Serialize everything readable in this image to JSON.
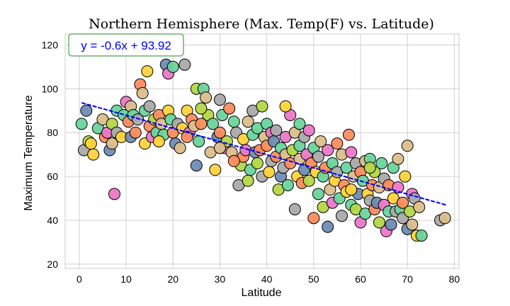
{
  "chart_data": {
    "type": "scatter",
    "title": "Northern Hemisphere (Max. Temp(F) vs. Latitude)",
    "xlabel": "Latitude",
    "ylabel": "Maximum Temperature",
    "xlim": [
      -3,
      81
    ],
    "ylim": [
      18,
      125
    ],
    "xticks": [
      0,
      10,
      20,
      30,
      40,
      50,
      60,
      70,
      80
    ],
    "yticks": [
      20,
      40,
      60,
      80,
      100,
      120
    ],
    "grid": true,
    "annotation": "y = -0.6x + 93.92",
    "regression": {
      "slope": -0.6,
      "intercept": 93.92,
      "x_range": [
        0.5,
        78.5
      ],
      "color": "#0000ff"
    },
    "palette": [
      "#fa8c5e",
      "#6ad49b",
      "#eb78c8",
      "#dcbe8c",
      "#aaaaaa",
      "#b4d746",
      "#ffd23c",
      "#6e8cb4"
    ],
    "point_colors_note": "index into palette",
    "points": [
      [
        0.5,
        84,
        1
      ],
      [
        1,
        72,
        4
      ],
      [
        1.5,
        90,
        7
      ],
      [
        2,
        76,
        5
      ],
      [
        2.5,
        75,
        6
      ],
      [
        3,
        70,
        6
      ],
      [
        4,
        82,
        1
      ],
      [
        5,
        86,
        3
      ],
      [
        5.5,
        78,
        0
      ],
      [
        6,
        80,
        2
      ],
      [
        6.5,
        72,
        7
      ],
      [
        7,
        84,
        5
      ],
      [
        7,
        75,
        3
      ],
      [
        7.5,
        52,
        2
      ],
      [
        8,
        90,
        1
      ],
      [
        8,
        80,
        4
      ],
      [
        9,
        78,
        6
      ],
      [
        9.5,
        88,
        1
      ],
      [
        10,
        94,
        2
      ],
      [
        10.5,
        85,
        0
      ],
      [
        11,
        92,
        3
      ],
      [
        11,
        78,
        7
      ],
      [
        11.5,
        88,
        1
      ],
      [
        12,
        80,
        0
      ],
      [
        12.5,
        86,
        4
      ],
      [
        13,
        102,
        0
      ],
      [
        13.5,
        98,
        3
      ],
      [
        14,
        90,
        1
      ],
      [
        14,
        75,
        6
      ],
      [
        14.5,
        108,
        6
      ],
      [
        15,
        92,
        4
      ],
      [
        15,
        83,
        0
      ],
      [
        15.5,
        78,
        2
      ],
      [
        16,
        86,
        5
      ],
      [
        16.5,
        80,
        1
      ],
      [
        17,
        88,
        0
      ],
      [
        17.5,
        84,
        3
      ],
      [
        18,
        79,
        1
      ],
      [
        18.5,
        111,
        7
      ],
      [
        19,
        107,
        2
      ],
      [
        19,
        90,
        6
      ],
      [
        19.5,
        86,
        1
      ],
      [
        20,
        110,
        1
      ],
      [
        20,
        80,
        0
      ],
      [
        20.5,
        75,
        7
      ],
      [
        21,
        84,
        4
      ],
      [
        21.5,
        73,
        3
      ],
      [
        22,
        82,
        6
      ],
      [
        22.5,
        111,
        4
      ],
      [
        23,
        90,
        6
      ],
      [
        23.5,
        80,
        2
      ],
      [
        24,
        86,
        0
      ],
      [
        24.5,
        83,
        3
      ],
      [
        25,
        100,
        5
      ],
      [
        25,
        65,
        7
      ],
      [
        25.5,
        76,
        1
      ],
      [
        26,
        84,
        0
      ],
      [
        26.5,
        100,
        1
      ],
      [
        27,
        96,
        3
      ],
      [
        27.5,
        88,
        5
      ],
      [
        28,
        71,
        3
      ],
      [
        28.5,
        84,
        1
      ],
      [
        29,
        63,
        6
      ],
      [
        29.5,
        78,
        7
      ],
      [
        30,
        95,
        4
      ],
      [
        30,
        80,
        0
      ],
      [
        30.5,
        88,
        1
      ],
      [
        31,
        73,
        2
      ],
      [
        31.5,
        76,
        5
      ],
      [
        32,
        91,
        0
      ],
      [
        32.5,
        71,
        3
      ],
      [
        33,
        85,
        1
      ],
      [
        33.5,
        80,
        4
      ],
      [
        34,
        56,
        4
      ],
      [
        34.5,
        65,
        5
      ],
      [
        35,
        69,
        0
      ],
      [
        35,
        77,
        6
      ],
      [
        35.5,
        72,
        2
      ],
      [
        36,
        85,
        3
      ],
      [
        36.5,
        63,
        1
      ],
      [
        37,
        79,
        1
      ],
      [
        37,
        90,
        4
      ],
      [
        37.5,
        71,
        7
      ],
      [
        38,
        66,
        5
      ],
      [
        38,
        82,
        1
      ],
      [
        38.5,
        72,
        0
      ],
      [
        39,
        92,
        5
      ],
      [
        39,
        60,
        4
      ],
      [
        39.5,
        78,
        3
      ],
      [
        40,
        74,
        0
      ],
      [
        40,
        84,
        1
      ],
      [
        40.5,
        62,
        6
      ],
      [
        41,
        80,
        2
      ],
      [
        41,
        67,
        4
      ],
      [
        41.5,
        76,
        7
      ],
      [
        42,
        69,
        0
      ],
      [
        42,
        81,
        4
      ],
      [
        42.5,
        54,
        5
      ],
      [
        43,
        73,
        1
      ],
      [
        43,
        60,
        7
      ],
      [
        43.5,
        64,
        4
      ],
      [
        44,
        78,
        2
      ],
      [
        44,
        70,
        3
      ],
      [
        44.5,
        56,
        1
      ],
      [
        45,
        88,
        2
      ],
      [
        45,
        66,
        0
      ],
      [
        45.5,
        72,
        5
      ],
      [
        46,
        80,
        3
      ],
      [
        46,
        45,
        4
      ],
      [
        46.5,
        60,
        6
      ],
      [
        47,
        74,
        1
      ],
      [
        47,
        68,
        3
      ],
      [
        47.5,
        57,
        0
      ],
      [
        48,
        78,
        4
      ],
      [
        48,
        63,
        7
      ],
      [
        48.5,
        70,
        2
      ],
      [
        49,
        81,
        2
      ],
      [
        49,
        58,
        5
      ],
      [
        49.5,
        66,
        0
      ],
      [
        50,
        73,
        1
      ],
      [
        50,
        41,
        0
      ],
      [
        50.5,
        62,
        6
      ],
      [
        51,
        52,
        1
      ],
      [
        51,
        69,
        4
      ],
      [
        51.5,
        76,
        3
      ],
      [
        52,
        60,
        1
      ],
      [
        52,
        46,
        5
      ],
      [
        52.5,
        64,
        0
      ],
      [
        53,
        72,
        2
      ],
      [
        53,
        37,
        7
      ],
      [
        53.5,
        54,
        3
      ],
      [
        54,
        66,
        1
      ],
      [
        54,
        48,
        2
      ],
      [
        54.5,
        58,
        6
      ],
      [
        55,
        75,
        0
      ],
      [
        55,
        62,
        4
      ],
      [
        55.5,
        50,
        1
      ],
      [
        56,
        70,
        3
      ],
      [
        56,
        42,
        4
      ],
      [
        56.5,
        56,
        0
      ],
      [
        57,
        64,
        1
      ],
      [
        57,
        53,
        6
      ],
      [
        57.5,
        79,
        0
      ],
      [
        58,
        47,
        1
      ],
      [
        58,
        71,
        2
      ],
      [
        58.5,
        60,
        3
      ],
      [
        59,
        45,
        5
      ],
      [
        59,
        66,
        4
      ],
      [
        59.5,
        52,
        7
      ],
      [
        60,
        62,
        0
      ],
      [
        60,
        39,
        2
      ],
      [
        60.5,
        58,
        1
      ],
      [
        61,
        43,
        1
      ],
      [
        61,
        67,
        3
      ],
      [
        61.5,
        52,
        6
      ],
      [
        62,
        49,
        4
      ],
      [
        62,
        68,
        1
      ],
      [
        62.5,
        56,
        0
      ],
      [
        63,
        45,
        0
      ],
      [
        63,
        62,
        5
      ],
      [
        63.5,
        48,
        7
      ],
      [
        64,
        39,
        5
      ],
      [
        64,
        55,
        3
      ],
      [
        64.5,
        66,
        1
      ],
      [
        65,
        47,
        2
      ],
      [
        65,
        59,
        4
      ],
      [
        65.5,
        35,
        2
      ],
      [
        66,
        44,
        1
      ],
      [
        66,
        56,
        0
      ],
      [
        66.5,
        38,
        7
      ],
      [
        67,
        64,
        1
      ],
      [
        67,
        50,
        6
      ],
      [
        67.5,
        44,
        4
      ],
      [
        68,
        55,
        2
      ],
      [
        68,
        68,
        3
      ],
      [
        68.5,
        45,
        1
      ],
      [
        69,
        48,
        0
      ],
      [
        69,
        41,
        4
      ],
      [
        69.5,
        60,
        6
      ],
      [
        70,
        36,
        7
      ],
      [
        70,
        74,
        3
      ],
      [
        70.5,
        44,
        5
      ],
      [
        71,
        52,
        2
      ],
      [
        71,
        38,
        3
      ],
      [
        71.5,
        50,
        4
      ],
      [
        72,
        33,
        6
      ],
      [
        72.5,
        46,
        3
      ],
      [
        73,
        33,
        1
      ],
      [
        77,
        40,
        4
      ],
      [
        78,
        41,
        3
      ],
      [
        17,
        76,
        6
      ],
      [
        26,
        91,
        5
      ],
      [
        33,
        67,
        0
      ],
      [
        44,
        92,
        6
      ],
      [
        47,
        84,
        1
      ],
      [
        36,
        58,
        5
      ],
      [
        58,
        54,
        6
      ],
      [
        62,
        64,
        5
      ],
      [
        30,
        73,
        3
      ],
      [
        23,
        78,
        0
      ]
    ]
  }
}
